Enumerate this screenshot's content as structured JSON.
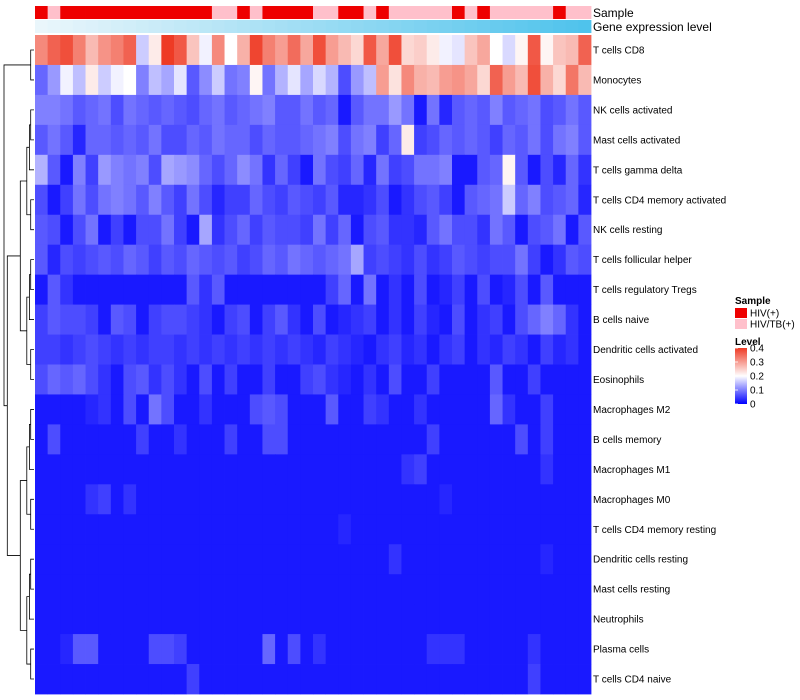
{
  "chart_data": {
    "type": "heatmap",
    "rows": [
      "T cells CD8",
      "Monocytes",
      "NK cells activated",
      "Mast cells activated",
      "T cells gamma delta",
      "T cells CD4 memory activated",
      "NK cells resting",
      "T cells follicular helper",
      "T cells regulatory  Tregs",
      "B cells naive",
      "Dendritic cells activated",
      "Eosinophils",
      "Macrophages M2",
      "B cells memory",
      "Macrophages M1",
      "Macrophages M0",
      "T cells CD4 memory resting",
      "Dendritic cells resting",
      "Mast cells resting",
      "Neutrophils",
      "Plasma cells",
      "T cells CD4 naive"
    ],
    "samples": [
      "HIV(+)",
      "HIV/TB(+)",
      "HIV(+)",
      "HIV(+)",
      "HIV(+)",
      "HIV(+)",
      "HIV(+)",
      "HIV(+)",
      "HIV(+)",
      "HIV(+)",
      "HIV(+)",
      "HIV(+)",
      "HIV(+)",
      "HIV(+)",
      "HIV/TB(+)",
      "HIV/TB(+)",
      "HIV(+)",
      "HIV/TB(+)",
      "HIV(+)",
      "HIV(+)",
      "HIV(+)",
      "HIV(+)",
      "HIV/TB(+)",
      "HIV/TB(+)",
      "HIV(+)",
      "HIV(+)",
      "HIV/TB(+)",
      "HIV(+)",
      "HIV/TB(+)",
      "HIV/TB(+)",
      "HIV/TB(+)",
      "HIV/TB(+)",
      "HIV/TB(+)",
      "HIV(+)",
      "HIV/TB(+)",
      "HIV(+)",
      "HIV/TB(+)",
      "HIV/TB(+)",
      "HIV/TB(+)",
      "HIV/TB(+)",
      "HIV/TB(+)",
      "HIV(+)",
      "HIV/TB(+)",
      "HIV/TB(+)"
    ],
    "values": [
      [
        0.32,
        0.36,
        0.38,
        0.33,
        0.27,
        0.31,
        0.33,
        0.36,
        0.16,
        0.22,
        0.4,
        0.37,
        0.26,
        0.19,
        0.32,
        0.2,
        0.28,
        0.39,
        0.33,
        0.3,
        0.35,
        0.29,
        0.38,
        0.3,
        0.27,
        0.24,
        0.37,
        0.29,
        0.38,
        0.24,
        0.25,
        0.22,
        0.19,
        0.18,
        0.26,
        0.29,
        0.2,
        0.17,
        0.21,
        0.37,
        0.21,
        0.26,
        0.27,
        0.36
      ],
      [
        0.08,
        0.12,
        0.19,
        0.15,
        0.22,
        0.16,
        0.19,
        0.2,
        0.1,
        0.15,
        0.13,
        0.18,
        0.07,
        0.11,
        0.16,
        0.09,
        0.1,
        0.21,
        0.09,
        0.14,
        0.18,
        0.13,
        0.17,
        0.14,
        0.06,
        0.12,
        0.15,
        0.3,
        0.23,
        0.32,
        0.28,
        0.27,
        0.3,
        0.31,
        0.29,
        0.24,
        0.36,
        0.3,
        0.27,
        0.38,
        0.28,
        0.24,
        0.34,
        0.27
      ],
      [
        0.1,
        0.1,
        0.09,
        0.07,
        0.08,
        0.09,
        0.06,
        0.09,
        0.08,
        0.07,
        0.08,
        0.07,
        0.06,
        0.08,
        0.09,
        0.07,
        0.08,
        0.09,
        0.1,
        0.07,
        0.07,
        0.09,
        0.07,
        0.08,
        0.02,
        0.07,
        0.09,
        0.09,
        0.12,
        0.09,
        0.02,
        0.09,
        0.03,
        0.07,
        0.08,
        0.07,
        0.1,
        0.07,
        0.08,
        0.09,
        0.06,
        0.07,
        0.09,
        0.07
      ],
      [
        0.07,
        0.09,
        0.07,
        0.03,
        0.08,
        0.08,
        0.07,
        0.08,
        0.07,
        0.09,
        0.06,
        0.06,
        0.08,
        0.07,
        0.09,
        0.08,
        0.08,
        0.06,
        0.08,
        0.07,
        0.07,
        0.08,
        0.09,
        0.1,
        0.06,
        0.09,
        0.1,
        0.05,
        0.08,
        0.22,
        0.05,
        0.06,
        0.08,
        0.07,
        0.08,
        0.07,
        0.05,
        0.08,
        0.07,
        0.09,
        0.06,
        0.09,
        0.1,
        0.07
      ],
      [
        0.14,
        0.07,
        0.02,
        0.1,
        0.05,
        0.12,
        0.1,
        0.09,
        0.1,
        0.06,
        0.13,
        0.12,
        0.11,
        0.08,
        0.06,
        0.08,
        0.11,
        0.09,
        0.04,
        0.08,
        0.05,
        0.02,
        0.09,
        0.06,
        0.05,
        0.08,
        0.03,
        0.09,
        0.05,
        0.06,
        0.09,
        0.09,
        0.1,
        0.02,
        0.02,
        0.07,
        0.08,
        0.21,
        0.07,
        0.02,
        0.06,
        0.03,
        0.08,
        0.04
      ],
      [
        0.06,
        0.02,
        0.05,
        0.09,
        0.06,
        0.09,
        0.1,
        0.09,
        0.07,
        0.1,
        0.07,
        0.05,
        0.09,
        0.06,
        0.03,
        0.05,
        0.05,
        0.08,
        0.06,
        0.05,
        0.07,
        0.06,
        0.05,
        0.07,
        0.03,
        0.03,
        0.04,
        0.06,
        0.02,
        0.04,
        0.06,
        0.07,
        0.05,
        0.02,
        0.07,
        0.08,
        0.09,
        0.16,
        0.08,
        0.1,
        0.06,
        0.07,
        0.08,
        0.03
      ],
      [
        0.07,
        0.06,
        0.02,
        0.06,
        0.09,
        0.02,
        0.05,
        0.02,
        0.06,
        0.06,
        0.09,
        0.05,
        0.02,
        0.13,
        0.04,
        0.06,
        0.08,
        0.05,
        0.07,
        0.06,
        0.06,
        0.05,
        0.09,
        0.05,
        0.08,
        0.02,
        0.06,
        0.07,
        0.04,
        0.04,
        0.03,
        0.07,
        0.09,
        0.06,
        0.06,
        0.04,
        0.09,
        0.07,
        0.02,
        0.06,
        0.07,
        0.09,
        0.02,
        0.07
      ],
      [
        0.07,
        0.03,
        0.06,
        0.05,
        0.06,
        0.07,
        0.06,
        0.08,
        0.07,
        0.05,
        0.07,
        0.06,
        0.08,
        0.07,
        0.06,
        0.07,
        0.05,
        0.06,
        0.08,
        0.07,
        0.09,
        0.08,
        0.07,
        0.08,
        0.09,
        0.13,
        0.05,
        0.06,
        0.05,
        0.04,
        0.06,
        0.04,
        0.05,
        0.07,
        0.06,
        0.05,
        0.06,
        0.06,
        0.09,
        0.05,
        0.02,
        0.04,
        0.07,
        0.06
      ],
      [
        0.02,
        0.07,
        0.04,
        0.02,
        0.02,
        0.02,
        0.02,
        0.02,
        0.02,
        0.02,
        0.02,
        0.02,
        0.07,
        0.04,
        0.07,
        0.02,
        0.02,
        0.02,
        0.02,
        0.02,
        0.02,
        0.02,
        0.02,
        0.05,
        0.08,
        0.02,
        0.09,
        0.02,
        0.04,
        0.02,
        0.06,
        0.02,
        0.03,
        0.05,
        0.02,
        0.06,
        0.02,
        0.03,
        0.06,
        0.02,
        0.07,
        0.02,
        0.02,
        0.02
      ],
      [
        0.05,
        0.07,
        0.06,
        0.06,
        0.05,
        0.02,
        0.07,
        0.06,
        0.02,
        0.05,
        0.06,
        0.06,
        0.05,
        0.04,
        0.02,
        0.05,
        0.06,
        0.02,
        0.05,
        0.07,
        0.04,
        0.02,
        0.06,
        0.02,
        0.03,
        0.04,
        0.05,
        0.02,
        0.04,
        0.02,
        0.05,
        0.03,
        0.02,
        0.06,
        0.02,
        0.04,
        0.05,
        0.02,
        0.06,
        0.08,
        0.1,
        0.08,
        0.04,
        0.02
      ],
      [
        0.05,
        0.05,
        0.04,
        0.05,
        0.06,
        0.05,
        0.04,
        0.05,
        0.04,
        0.05,
        0.05,
        0.04,
        0.05,
        0.04,
        0.05,
        0.04,
        0.05,
        0.04,
        0.05,
        0.04,
        0.05,
        0.04,
        0.03,
        0.05,
        0.04,
        0.03,
        0.02,
        0.04,
        0.05,
        0.03,
        0.04,
        0.02,
        0.04,
        0.05,
        0.02,
        0.04,
        0.03,
        0.05,
        0.04,
        0.02,
        0.05,
        0.03,
        0.04,
        0.02
      ],
      [
        0.06,
        0.08,
        0.07,
        0.08,
        0.06,
        0.04,
        0.02,
        0.06,
        0.07,
        0.04,
        0.06,
        0.04,
        0.02,
        0.06,
        0.02,
        0.05,
        0.02,
        0.02,
        0.05,
        0.02,
        0.02,
        0.05,
        0.06,
        0.04,
        0.03,
        0.02,
        0.04,
        0.02,
        0.06,
        0.02,
        0.02,
        0.05,
        0.02,
        0.02,
        0.02,
        0.02,
        0.07,
        0.02,
        0.02,
        0.05,
        0.02,
        0.02,
        0.02,
        0.02
      ],
      [
        0.02,
        0.02,
        0.02,
        0.02,
        0.03,
        0.04,
        0.02,
        0.06,
        0.02,
        0.09,
        0.06,
        0.02,
        0.02,
        0.04,
        0.02,
        0.02,
        0.02,
        0.06,
        0.07,
        0.06,
        0.02,
        0.02,
        0.02,
        0.07,
        0.02,
        0.02,
        0.05,
        0.04,
        0.02,
        0.02,
        0.04,
        0.02,
        0.02,
        0.02,
        0.02,
        0.02,
        0.08,
        0.04,
        0.02,
        0.02,
        0.05,
        0.02,
        0.02,
        0.02
      ],
      [
        0.02,
        0.06,
        0.02,
        0.02,
        0.02,
        0.02,
        0.02,
        0.02,
        0.05,
        0.02,
        0.02,
        0.04,
        0.02,
        0.02,
        0.02,
        0.05,
        0.02,
        0.02,
        0.06,
        0.06,
        0.02,
        0.02,
        0.02,
        0.02,
        0.02,
        0.02,
        0.02,
        0.02,
        0.02,
        0.02,
        0.02,
        0.05,
        0.02,
        0.02,
        0.02,
        0.02,
        0.02,
        0.02,
        0.06,
        0.02,
        0.05,
        0.02,
        0.02,
        0.02
      ],
      [
        0.02,
        0.02,
        0.02,
        0.02,
        0.02,
        0.02,
        0.02,
        0.02,
        0.02,
        0.02,
        0.02,
        0.02,
        0.02,
        0.02,
        0.02,
        0.02,
        0.02,
        0.02,
        0.02,
        0.02,
        0.02,
        0.02,
        0.02,
        0.02,
        0.02,
        0.02,
        0.02,
        0.02,
        0.02,
        0.04,
        0.05,
        0.02,
        0.02,
        0.02,
        0.02,
        0.02,
        0.02,
        0.02,
        0.02,
        0.02,
        0.04,
        0.02,
        0.02,
        0.02
      ],
      [
        0.02,
        0.02,
        0.02,
        0.02,
        0.04,
        0.05,
        0.02,
        0.04,
        0.02,
        0.02,
        0.02,
        0.02,
        0.02,
        0.02,
        0.02,
        0.02,
        0.02,
        0.02,
        0.02,
        0.02,
        0.02,
        0.02,
        0.02,
        0.02,
        0.02,
        0.02,
        0.02,
        0.02,
        0.02,
        0.02,
        0.02,
        0.02,
        0.03,
        0.02,
        0.02,
        0.02,
        0.02,
        0.02,
        0.02,
        0.02,
        0.02,
        0.02,
        0.02,
        0.02
      ],
      [
        0.02,
        0.02,
        0.02,
        0.02,
        0.02,
        0.02,
        0.02,
        0.02,
        0.02,
        0.02,
        0.02,
        0.02,
        0.02,
        0.02,
        0.02,
        0.02,
        0.02,
        0.02,
        0.02,
        0.02,
        0.02,
        0.02,
        0.02,
        0.02,
        0.03,
        0.02,
        0.02,
        0.02,
        0.02,
        0.02,
        0.02,
        0.02,
        0.02,
        0.02,
        0.02,
        0.02,
        0.02,
        0.02,
        0.02,
        0.02,
        0.02,
        0.02,
        0.02,
        0.02
      ],
      [
        0.02,
        0.02,
        0.02,
        0.02,
        0.02,
        0.02,
        0.02,
        0.02,
        0.02,
        0.02,
        0.02,
        0.02,
        0.02,
        0.02,
        0.02,
        0.02,
        0.02,
        0.02,
        0.02,
        0.02,
        0.02,
        0.02,
        0.02,
        0.02,
        0.02,
        0.02,
        0.02,
        0.02,
        0.04,
        0.02,
        0.02,
        0.02,
        0.02,
        0.02,
        0.02,
        0.02,
        0.02,
        0.02,
        0.02,
        0.02,
        0.03,
        0.02,
        0.02,
        0.02
      ],
      [
        0.02,
        0.02,
        0.02,
        0.02,
        0.02,
        0.02,
        0.02,
        0.02,
        0.02,
        0.02,
        0.02,
        0.02,
        0.02,
        0.02,
        0.02,
        0.02,
        0.02,
        0.02,
        0.02,
        0.02,
        0.02,
        0.02,
        0.02,
        0.02,
        0.02,
        0.02,
        0.02,
        0.02,
        0.02,
        0.02,
        0.02,
        0.02,
        0.02,
        0.02,
        0.02,
        0.02,
        0.02,
        0.02,
        0.02,
        0.02,
        0.02,
        0.02,
        0.02,
        0.02
      ],
      [
        0.02,
        0.02,
        0.02,
        0.02,
        0.02,
        0.02,
        0.02,
        0.02,
        0.02,
        0.02,
        0.02,
        0.02,
        0.02,
        0.02,
        0.02,
        0.02,
        0.02,
        0.02,
        0.02,
        0.02,
        0.02,
        0.02,
        0.02,
        0.02,
        0.02,
        0.02,
        0.02,
        0.02,
        0.02,
        0.02,
        0.02,
        0.02,
        0.02,
        0.02,
        0.02,
        0.02,
        0.02,
        0.02,
        0.02,
        0.02,
        0.02,
        0.02,
        0.02,
        0.02
      ],
      [
        0.02,
        0.02,
        0.03,
        0.07,
        0.07,
        0.02,
        0.02,
        0.02,
        0.02,
        0.06,
        0.06,
        0.05,
        0.02,
        0.02,
        0.02,
        0.02,
        0.02,
        0.02,
        0.08,
        0.02,
        0.06,
        0.02,
        0.04,
        0.02,
        0.02,
        0.02,
        0.02,
        0.02,
        0.02,
        0.02,
        0.02,
        0.04,
        0.04,
        0.04,
        0.02,
        0.02,
        0.02,
        0.02,
        0.02,
        0.04,
        0.02,
        0.02,
        0.02,
        0.02
      ],
      [
        0.02,
        0.02,
        0.02,
        0.02,
        0.02,
        0.02,
        0.02,
        0.02,
        0.02,
        0.02,
        0.02,
        0.02,
        0.05,
        0.02,
        0.02,
        0.02,
        0.02,
        0.02,
        0.02,
        0.02,
        0.02,
        0.02,
        0.02,
        0.02,
        0.02,
        0.02,
        0.02,
        0.02,
        0.02,
        0.02,
        0.02,
        0.02,
        0.02,
        0.02,
        0.02,
        0.02,
        0.02,
        0.02,
        0.02,
        0.05,
        0.02,
        0.02,
        0.02,
        0.02
      ]
    ],
    "annotation_labels": {
      "sample": "Sample",
      "gene_expression": "Gene expression level"
    },
    "legend": {
      "sample_title": "Sample",
      "sample_items": [
        {
          "label": "HIV(+)",
          "color": "#ee0000"
        },
        {
          "label": "HIV/TB(+)",
          "color": "#ffc0cb"
        }
      ],
      "level_title": "Level",
      "level_ticks": [
        0.4,
        0.3,
        0.2,
        0.1,
        0
      ],
      "level_range": [
        0,
        0.4
      ]
    },
    "colors": {
      "low": "#0000ff",
      "mid": "#ffffff",
      "high": "#ee3b25",
      "midpoint": 0.2,
      "expr_start": "#eaf6fb",
      "expr_end": "#4fc3ec"
    }
  }
}
